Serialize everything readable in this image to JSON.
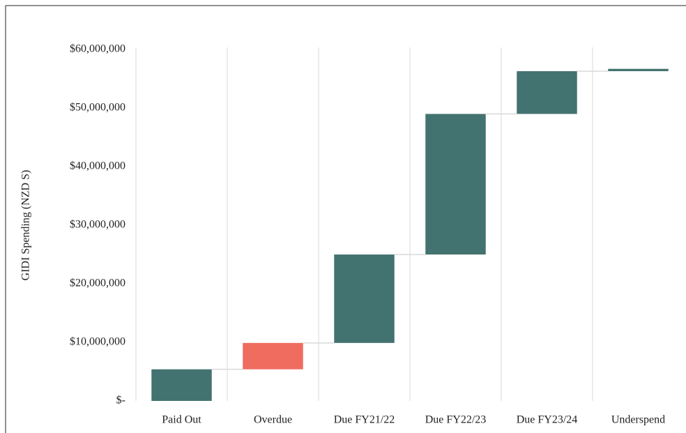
{
  "chart_data": {
    "type": "waterfall",
    "y_label": "GIDI Spending (NZD S)",
    "categories": [
      "Paid Out",
      "Overdue",
      "Due FY21/22",
      "Due FY22/23",
      "Due FY23/24",
      "Underspend"
    ],
    "values": [
      5400000,
      4500000,
      15100000,
      24000000,
      7300000,
      400000
    ],
    "colors": [
      "#437370",
      "#ef6c5e",
      "#437370",
      "#437370",
      "#437370",
      "#437370"
    ],
    "ylim": [
      0,
      60000000
    ],
    "yticks": [
      {
        "value": 0,
        "label": "$-"
      },
      {
        "value": 10000000,
        "label": "$10,000,000"
      },
      {
        "value": 20000000,
        "label": "$20,000,000"
      },
      {
        "value": 30000000,
        "label": "$30,000,000"
      },
      {
        "value": 40000000,
        "label": "$40,000,000"
      },
      {
        "value": 50000000,
        "label": "$50,000,000"
      },
      {
        "value": 60000000,
        "label": "$60,000,000"
      }
    ],
    "grid": false
  }
}
